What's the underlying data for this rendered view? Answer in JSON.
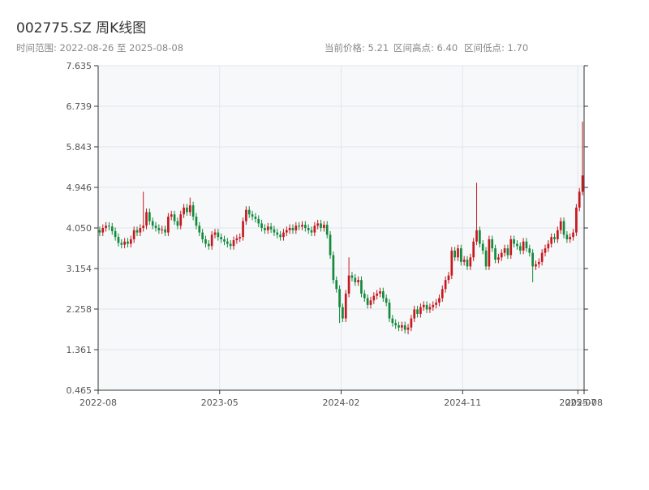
{
  "chart_data": {
    "type": "candlestick",
    "title": "002775.SZ 周K线图",
    "subtitle": {
      "range": "时间范围: 2022-08-26 至 2025-08-08",
      "price": "当前价格: 5.21",
      "high": "区间高点: 6.40",
      "low": "区间低点: 1.70"
    },
    "up_color": "#c8181e",
    "down_color": "#148a3c",
    "grid": true,
    "xlim": [
      0,
      156
    ],
    "xticks": [
      {
        "value": 0,
        "label": "2022-08"
      },
      {
        "value": 39,
        "label": "2023-05"
      },
      {
        "value": 78,
        "label": "2024-02"
      },
      {
        "value": 117,
        "label": "2024-11"
      },
      {
        "value": 154,
        "label": "2025-07"
      },
      {
        "value": 156,
        "label": "2025-08"
      }
    ],
    "ylim": [
      0.465,
      7.635
    ],
    "yticks": [
      0.465,
      1.361,
      2.258,
      3.154,
      {
        "value": 4.05,
        "label": "4.050"
      },
      4.946,
      5.843,
      6.739,
      7.635
    ],
    "open": [
      4.0,
      3.95,
      4.05,
      4.1,
      4.08,
      3.98,
      3.85,
      3.72,
      3.68,
      3.75,
      3.7,
      3.8,
      4.0,
      3.95,
      4.05,
      4.1,
      4.4,
      4.2,
      4.1,
      4.05,
      4.0,
      4.02,
      3.95,
      4.3,
      4.35,
      4.2,
      4.1,
      4.35,
      4.5,
      4.4,
      4.55,
      4.3,
      4.1,
      3.95,
      3.8,
      3.7,
      3.65,
      3.9,
      3.95,
      3.85,
      3.8,
      3.75,
      3.7,
      3.65,
      3.78,
      3.82,
      3.85,
      4.2,
      4.45,
      4.35,
      4.3,
      4.25,
      4.15,
      4.05,
      4.0,
      4.08,
      4.02,
      3.95,
      3.9,
      3.85,
      3.95,
      4.0,
      4.05,
      4.0,
      4.1,
      4.08,
      4.12,
      4.05,
      4.0,
      3.95,
      4.1,
      4.15,
      4.05,
      4.12,
      3.9,
      3.45,
      2.9,
      2.7,
      2.3,
      2.05,
      2.6,
      3.0,
      2.95,
      2.85,
      2.9,
      2.6,
      2.5,
      2.35,
      2.45,
      2.55,
      2.6,
      2.65,
      2.5,
      2.4,
      2.05,
      1.95,
      1.9,
      1.85,
      1.9,
      1.8,
      1.85,
      2.05,
      2.25,
      2.15,
      2.3,
      2.35,
      2.25,
      2.3,
      2.35,
      2.4,
      2.5,
      2.7,
      2.9,
      3.0,
      3.55,
      3.4,
      3.6,
      3.3,
      3.35,
      3.2,
      3.4,
      3.75,
      4.0,
      3.7,
      3.55,
      3.2,
      3.8,
      3.6,
      3.35,
      3.4,
      3.5,
      3.6,
      3.45,
      3.8,
      3.7,
      3.65,
      3.55,
      3.75,
      3.6,
      3.5,
      3.2,
      3.25,
      3.3,
      3.5,
      3.6,
      3.7,
      3.85,
      3.8,
      4.0,
      4.2,
      3.9,
      3.8,
      3.85,
      3.95,
      4.5,
      4.85
    ],
    "high": [
      4.08,
      4.13,
      4.18,
      4.18,
      4.16,
      4.06,
      3.93,
      3.8,
      3.83,
      3.83,
      3.88,
      4.08,
      4.08,
      4.13,
      4.85,
      4.48,
      4.48,
      4.28,
      4.18,
      4.13,
      4.1,
      4.1,
      4.38,
      4.43,
      4.43,
      4.28,
      4.43,
      4.58,
      4.58,
      4.72,
      4.63,
      4.38,
      4.18,
      4.03,
      3.88,
      3.78,
      3.98,
      4.03,
      4.03,
      3.93,
      3.88,
      3.83,
      3.78,
      3.86,
      3.9,
      3.93,
      4.28,
      4.53,
      4.53,
      4.43,
      4.38,
      4.33,
      4.23,
      4.13,
      4.16,
      4.16,
      4.1,
      4.03,
      3.98,
      4.03,
      4.08,
      4.13,
      4.13,
      4.18,
      4.18,
      4.2,
      4.2,
      4.13,
      4.08,
      4.18,
      4.23,
      4.23,
      4.2,
      4.2,
      3.98,
      3.53,
      2.98,
      2.78,
      2.38,
      2.68,
      3.4,
      3.08,
      3.03,
      2.98,
      2.98,
      2.68,
      2.58,
      2.53,
      2.63,
      2.68,
      2.73,
      2.73,
      2.58,
      2.48,
      2.13,
      2.03,
      1.98,
      1.98,
      1.98,
      1.93,
      2.13,
      2.33,
      2.33,
      2.38,
      2.43,
      2.43,
      2.38,
      2.43,
      2.48,
      2.58,
      2.78,
      2.98,
      3.08,
      3.63,
      3.63,
      3.68,
      3.68,
      3.43,
      3.43,
      3.48,
      3.83,
      5.05,
      4.08,
      3.78,
      3.63,
      3.88,
      3.88,
      3.68,
      3.48,
      3.58,
      3.68,
      3.68,
      3.88,
      3.88,
      3.78,
      3.73,
      3.83,
      3.83,
      3.68,
      3.58,
      3.33,
      3.38,
      3.58,
      3.68,
      3.78,
      3.93,
      3.93,
      4.08,
      4.28,
      4.28,
      3.98,
      3.93,
      4.03,
      4.58,
      4.93,
      6.4
    ],
    "low": [
      3.87,
      3.87,
      3.97,
      4.0,
      3.9,
      3.77,
      3.64,
      3.6,
      3.6,
      3.62,
      3.62,
      3.72,
      3.87,
      3.87,
      3.97,
      4.02,
      4.12,
      4.02,
      3.97,
      3.92,
      3.92,
      3.87,
      3.87,
      4.22,
      4.12,
      4.02,
      4.02,
      4.27,
      4.32,
      4.32,
      4.22,
      4.02,
      3.87,
      3.72,
      3.62,
      3.57,
      3.57,
      3.82,
      3.77,
      3.72,
      3.67,
      3.62,
      3.57,
      3.57,
      3.7,
      3.74,
      3.77,
      4.12,
      4.27,
      4.22,
      4.17,
      4.07,
      3.97,
      3.92,
      3.92,
      3.94,
      3.87,
      3.82,
      3.77,
      3.77,
      3.87,
      3.92,
      3.92,
      3.92,
      4.0,
      4.0,
      3.97,
      3.92,
      3.87,
      3.87,
      4.02,
      3.97,
      3.97,
      3.82,
      3.37,
      2.82,
      2.62,
      1.95,
      1.97,
      1.97,
      2.52,
      2.87,
      2.77,
      2.77,
      2.52,
      2.42,
      2.27,
      2.27,
      2.37,
      2.47,
      2.52,
      2.42,
      2.32,
      1.97,
      1.87,
      1.82,
      1.77,
      1.77,
      1.72,
      1.7,
      1.77,
      1.97,
      2.07,
      2.07,
      2.22,
      2.17,
      2.17,
      2.22,
      2.27,
      2.32,
      2.42,
      2.62,
      2.82,
      2.92,
      3.32,
      3.32,
      3.22,
      3.22,
      3.12,
      3.12,
      3.32,
      3.67,
      3.62,
      3.47,
      3.12,
      3.12,
      3.52,
      3.27,
      3.27,
      3.32,
      3.42,
      3.37,
      3.37,
      3.62,
      3.57,
      3.47,
      3.47,
      3.52,
      3.42,
      2.85,
      3.12,
      3.17,
      3.22,
      3.42,
      3.52,
      3.62,
      3.72,
      3.72,
      3.92,
      3.82,
      3.72,
      3.72,
      3.77,
      3.87,
      4.42,
      4.77
    ],
    "close": [
      3.95,
      4.05,
      4.1,
      4.08,
      3.98,
      3.85,
      3.72,
      3.68,
      3.75,
      3.7,
      3.8,
      4.0,
      3.95,
      4.05,
      4.1,
      4.4,
      4.2,
      4.1,
      4.05,
      4.0,
      4.02,
      3.95,
      4.3,
      4.35,
      4.2,
      4.1,
      4.35,
      4.5,
      4.4,
      4.55,
      4.3,
      4.1,
      3.95,
      3.8,
      3.7,
      3.65,
      3.9,
      3.95,
      3.85,
      3.8,
      3.75,
      3.7,
      3.65,
      3.78,
      3.82,
      3.85,
      4.2,
      4.45,
      4.35,
      4.3,
      4.25,
      4.15,
      4.05,
      4.0,
      4.08,
      4.02,
      3.95,
      3.9,
      3.85,
      3.95,
      4.0,
      4.05,
      4.0,
      4.1,
      4.08,
      4.12,
      4.05,
      4.0,
      3.95,
      4.1,
      4.15,
      4.05,
      4.12,
      3.9,
      3.45,
      2.9,
      2.7,
      2.3,
      2.05,
      2.6,
      3.0,
      2.95,
      2.85,
      2.9,
      2.6,
      2.5,
      2.35,
      2.45,
      2.55,
      2.6,
      2.65,
      2.5,
      2.4,
      2.05,
      1.95,
      1.9,
      1.85,
      1.9,
      1.8,
      1.85,
      2.05,
      2.25,
      2.15,
      2.3,
      2.35,
      2.25,
      2.3,
      2.35,
      2.4,
      2.5,
      2.7,
      2.9,
      3.0,
      3.55,
      3.4,
      3.6,
      3.3,
      3.35,
      3.2,
      3.4,
      3.75,
      4.0,
      3.7,
      3.55,
      3.2,
      3.8,
      3.6,
      3.35,
      3.4,
      3.5,
      3.6,
      3.45,
      3.8,
      3.7,
      3.65,
      3.55,
      3.75,
      3.6,
      3.5,
      3.2,
      3.25,
      3.3,
      3.5,
      3.6,
      3.7,
      3.85,
      3.8,
      4.0,
      4.2,
      3.9,
      3.8,
      3.85,
      3.95,
      4.5,
      4.85,
      5.21
    ]
  }
}
